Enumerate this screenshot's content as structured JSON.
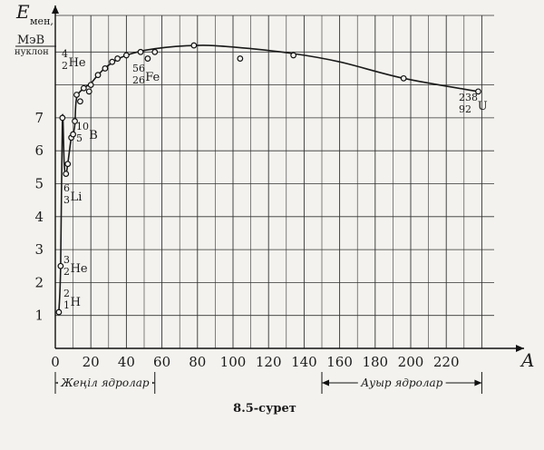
{
  "chart_data": {
    "type": "scatter",
    "caption": "8.5-сурет",
    "y_axis": {
      "symbol": "E",
      "subscript": "мен,",
      "unit_top": "МэВ",
      "unit_bottom": "нуклон",
      "range": [
        0,
        9.2
      ],
      "ticks": [
        "1",
        "2",
        "3",
        "4",
        "5",
        "6",
        "7"
      ]
    },
    "x_axis": {
      "label": "A",
      "range": [
        0,
        240
      ],
      "ticks": [
        "0",
        "20",
        "40",
        "60",
        "80",
        "100",
        "120",
        "140",
        "160",
        "180",
        "200",
        "220"
      ]
    },
    "grid": true,
    "points": [
      {
        "x": 2,
        "y": 1.1
      },
      {
        "x": 3,
        "y": 2.5
      },
      {
        "x": 4,
        "y": 7.0
      },
      {
        "x": 6,
        "y": 5.3
      },
      {
        "x": 7,
        "y": 5.6
      },
      {
        "x": 9,
        "y": 6.4
      },
      {
        "x": 10,
        "y": 6.5
      },
      {
        "x": 11,
        "y": 6.9
      },
      {
        "x": 12,
        "y": 7.7
      },
      {
        "x": 14,
        "y": 7.5
      },
      {
        "x": 16,
        "y": 7.9
      },
      {
        "x": 19,
        "y": 7.8
      },
      {
        "x": 20,
        "y": 8.0
      },
      {
        "x": 24,
        "y": 8.3
      },
      {
        "x": 28,
        "y": 8.5
      },
      {
        "x": 32,
        "y": 8.7
      },
      {
        "x": 35,
        "y": 8.8
      },
      {
        "x": 40,
        "y": 8.9
      },
      {
        "x": 48,
        "y": 9.0
      },
      {
        "x": 52,
        "y": 8.8
      },
      {
        "x": 56,
        "y": 9.0
      },
      {
        "x": 78,
        "y": 9.2
      },
      {
        "x": 104,
        "y": 8.8
      },
      {
        "x": 134,
        "y": 8.9
      },
      {
        "x": 196,
        "y": 8.2
      },
      {
        "x": 238,
        "y": 7.8
      }
    ],
    "curve": [
      {
        "x": 2,
        "y": 1.1
      },
      {
        "x": 3,
        "y": 2.5
      },
      {
        "x": 4,
        "y": 7.0
      },
      {
        "x": 5,
        "y": 5.6
      },
      {
        "x": 6,
        "y": 5.3
      },
      {
        "x": 7,
        "y": 5.6
      },
      {
        "x": 9,
        "y": 6.4
      },
      {
        "x": 10,
        "y": 6.5
      },
      {
        "x": 11,
        "y": 6.8
      },
      {
        "x": 12,
        "y": 7.6
      },
      {
        "x": 16,
        "y": 7.9
      },
      {
        "x": 20,
        "y": 8.05
      },
      {
        "x": 24,
        "y": 8.3
      },
      {
        "x": 30,
        "y": 8.6
      },
      {
        "x": 40,
        "y": 8.9
      },
      {
        "x": 56,
        "y": 9.1
      },
      {
        "x": 80,
        "y": 9.2
      },
      {
        "x": 100,
        "y": 9.15
      },
      {
        "x": 134,
        "y": 8.95
      },
      {
        "x": 160,
        "y": 8.7
      },
      {
        "x": 196,
        "y": 8.2
      },
      {
        "x": 238,
        "y": 7.8
      }
    ],
    "isotopes": [
      {
        "mass": "2",
        "z": "1",
        "symbol": "H",
        "x": 2,
        "y": 1.1
      },
      {
        "mass": "3",
        "z": "2",
        "symbol": "He",
        "x": 3,
        "y": 2.5
      },
      {
        "mass": "6",
        "z": "3",
        "symbol": "Li",
        "x": 6,
        "y": 5.3
      },
      {
        "mass": "10",
        "z": "5",
        "symbol": "B",
        "x": 10,
        "y": 6.5
      },
      {
        "mass": "4",
        "z": "2",
        "symbol": "He",
        "x": 4,
        "y": 7.0
      },
      {
        "mass": "56",
        "z": "26",
        "symbol": "Fe",
        "x": 56,
        "y": 9.0
      },
      {
        "mass": "238",
        "z": "92",
        "symbol": "U",
        "x": 238,
        "y": 7.8
      }
    ],
    "regions": [
      {
        "label": "Жеңіл ядролар",
        "from": 0,
        "to": 56
      },
      {
        "label": "Ауыр ядролар",
        "from": 150,
        "to": 240
      }
    ]
  }
}
